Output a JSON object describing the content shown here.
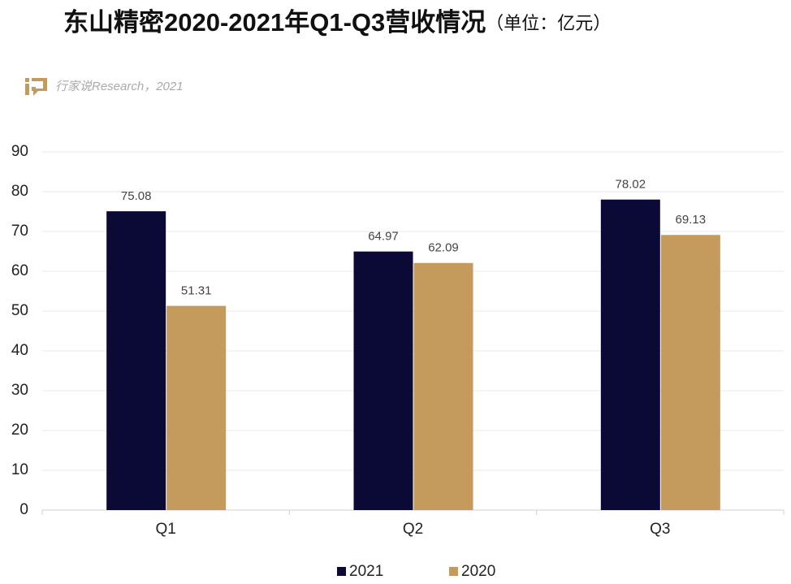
{
  "chart_data": {
    "type": "bar",
    "title": "东山精密2020-2021年Q1-Q3营收情况",
    "unit": "（单位：亿元）",
    "source": "行家说Research，2021",
    "categories": [
      "Q1",
      "Q2",
      "Q3"
    ],
    "series": [
      {
        "name": "2021",
        "color": "#0b0a36",
        "values": [
          75.08,
          64.97,
          78.02
        ]
      },
      {
        "name": "2020",
        "color": "#c59b5d",
        "values": [
          51.31,
          62.09,
          69.13
        ]
      }
    ],
    "ylim": [
      0,
      90
    ],
    "yticks": [
      0,
      10,
      20,
      30,
      40,
      50,
      60,
      70,
      80,
      90
    ],
    "grid": true
  }
}
